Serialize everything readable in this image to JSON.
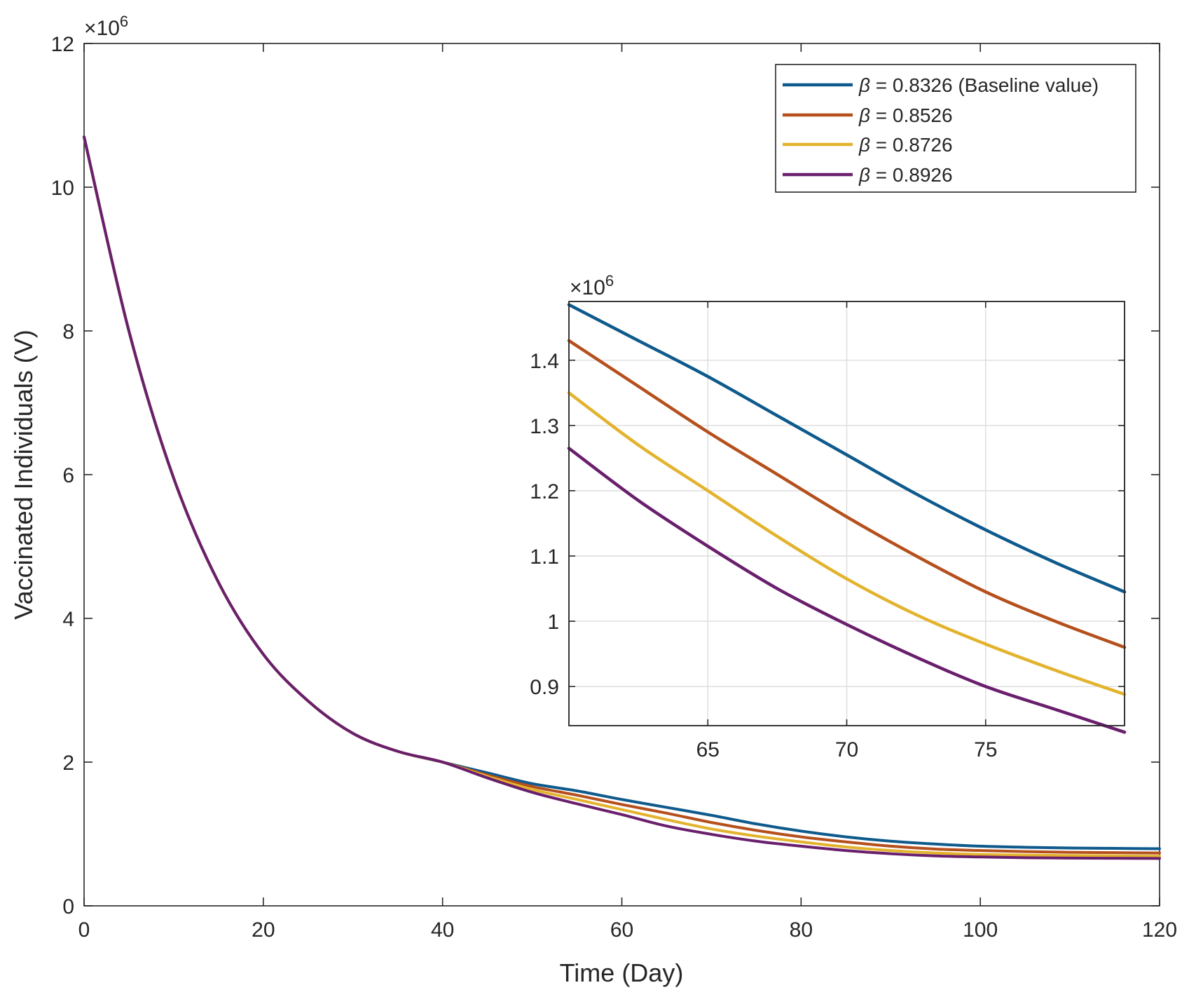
{
  "chart_data": [
    {
      "id": "main",
      "type": "line",
      "title": "",
      "xlabel": "Time (Day)",
      "ylabel": "Vaccinated Individuals (V)",
      "xlim": [
        0,
        120
      ],
      "ylim": [
        0,
        12000000
      ],
      "xticks": [
        0,
        20,
        40,
        60,
        80,
        100,
        120
      ],
      "xtick_labels": [
        "0",
        "20",
        "40",
        "60",
        "80",
        "100",
        "120"
      ],
      "yticks": [
        0,
        2000000,
        4000000,
        6000000,
        8000000,
        10000000,
        12000000
      ],
      "ytick_labels": [
        "0",
        "2",
        "4",
        "6",
        "8",
        "10",
        "12"
      ],
      "y_multiplier_label": "×10",
      "y_multiplier_exponent": "6",
      "grid": false,
      "legend_location": "top-right",
      "x": [
        0,
        5,
        10,
        15,
        20,
        25,
        30,
        35,
        40,
        45,
        50,
        55,
        60,
        65,
        70,
        75,
        80,
        85,
        90,
        95,
        100,
        105,
        110,
        115,
        120
      ],
      "series": [
        {
          "name": "β = 0.8326 (Baseline value)",
          "legend_symbol": "β",
          "legend_value": " = 0.8326 (Baseline value)",
          "color": "#0f5a8c",
          "values": [
            10700000,
            8000000,
            5950000,
            4500000,
            3500000,
            2850000,
            2400000,
            2150000,
            2000000,
            1850000,
            1700000,
            1600000,
            1480000,
            1370000,
            1260000,
            1140000,
            1040000,
            960000,
            900000,
            860000,
            830000,
            815000,
            805000,
            800000,
            795000
          ]
        },
        {
          "name": "β = 0.8526",
          "legend_symbol": "β",
          "legend_value": " = 0.8526",
          "color": "#b5501d",
          "values": [
            10700000,
            8000000,
            5950000,
            4500000,
            3500000,
            2850000,
            2400000,
            2150000,
            2000000,
            1820000,
            1660000,
            1540000,
            1410000,
            1290000,
            1160000,
            1050000,
            960000,
            890000,
            830000,
            790000,
            770000,
            755000,
            745000,
            740000,
            735000
          ]
        },
        {
          "name": "β = 0.8726",
          "legend_symbol": "β",
          "legend_value": " = 0.8726",
          "color": "#e3b32e",
          "values": [
            10700000,
            8000000,
            5950000,
            4500000,
            3500000,
            2850000,
            2400000,
            2150000,
            2000000,
            1800000,
            1620000,
            1480000,
            1340000,
            1200000,
            1070000,
            970000,
            890000,
            820000,
            770000,
            735000,
            715000,
            705000,
            700000,
            695000,
            690000
          ]
        },
        {
          "name": "β = 0.8926",
          "legend_symbol": "β",
          "legend_value": " = 0.8926",
          "color": "#6a1f6d",
          "values": [
            10700000,
            8000000,
            5950000,
            4500000,
            3500000,
            2850000,
            2400000,
            2150000,
            2000000,
            1780000,
            1580000,
            1420000,
            1270000,
            1110000,
            995000,
            900000,
            830000,
            770000,
            725000,
            695000,
            680000,
            670000,
            665000,
            662000,
            660000
          ]
        }
      ]
    },
    {
      "id": "inset",
      "type": "line",
      "title": "",
      "xlabel": "",
      "ylabel": "",
      "xlim": [
        60,
        80
      ],
      "ylim": [
        840000,
        1490000
      ],
      "xticks": [
        65,
        70,
        75
      ],
      "xtick_labels": [
        "65",
        "70",
        "75"
      ],
      "yticks": [
        900000,
        1000000,
        1100000,
        1200000,
        1300000,
        1400000
      ],
      "ytick_labels": [
        "0.9",
        "1",
        "1.1",
        "1.2",
        "1.3",
        "1.4"
      ],
      "y_multiplier_label": "×10",
      "y_multiplier_exponent": "6",
      "grid": true,
      "x": [
        60,
        62.5,
        65,
        67.5,
        70,
        72.5,
        75,
        77.5,
        80
      ],
      "series": [
        {
          "name": "β = 0.8326 (Baseline value)",
          "color": "#0f5a8c",
          "values": [
            1485000,
            1430000,
            1375000,
            1315000,
            1255000,
            1195000,
            1140000,
            1090000,
            1045000
          ]
        },
        {
          "name": "β = 0.8526",
          "color": "#b5501d",
          "values": [
            1430000,
            1360000,
            1290000,
            1225000,
            1160000,
            1100000,
            1045000,
            1000000,
            960000
          ]
        },
        {
          "name": "β = 0.8726",
          "color": "#e3b32e",
          "values": [
            1350000,
            1270000,
            1200000,
            1130000,
            1065000,
            1010000,
            965000,
            925000,
            888000
          ]
        },
        {
          "name": "β = 0.8926",
          "color": "#6a1f6d",
          "values": [
            1265000,
            1185000,
            1115000,
            1050000,
            995000,
            945000,
            900000,
            865000,
            830000
          ]
        }
      ]
    }
  ]
}
